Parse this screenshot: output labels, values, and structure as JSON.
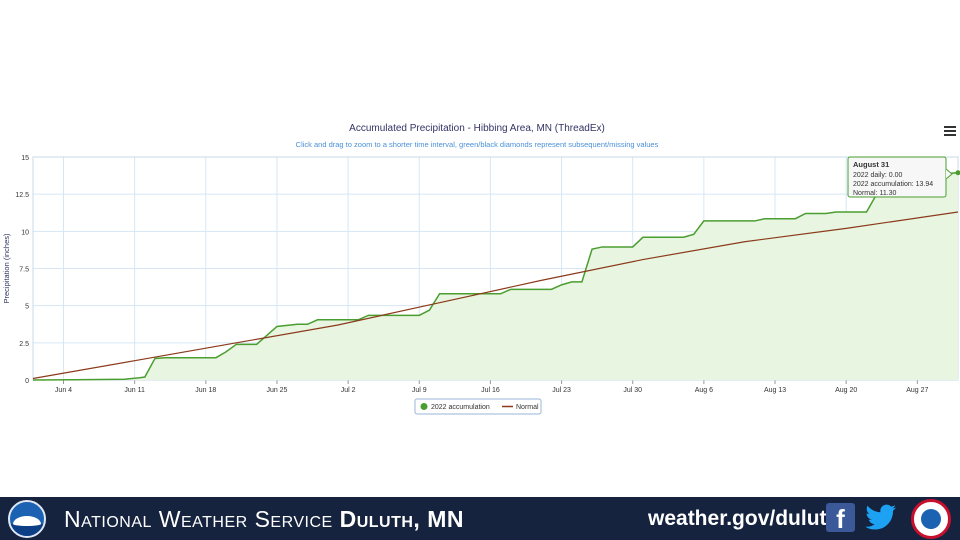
{
  "chart_data": {
    "type": "area",
    "title": "Accumulated Precipitation - Hibbing Area, MN (ThreadEx)",
    "subtitle": "Click and drag to zoom to a shorter time interval, green/black diamonds represent subsequent/missing values",
    "ylabel": "Precipitation (inches)",
    "xlabel": "",
    "ylim": [
      0,
      15
    ],
    "yticks": [
      0,
      2.5,
      5,
      7.5,
      10,
      12.5,
      15
    ],
    "ytick_labels": [
      "0",
      "2.5",
      "5",
      "7.5",
      "10",
      "12.5",
      "15"
    ],
    "x_range_day": [
      0,
      91
    ],
    "xticks": [
      {
        "day": 3,
        "label": "Jun 4"
      },
      {
        "day": 10,
        "label": "Jun 11"
      },
      {
        "day": 17,
        "label": "Jun 18"
      },
      {
        "day": 24,
        "label": "Jun 25"
      },
      {
        "day": 31,
        "label": "Jul 2"
      },
      {
        "day": 38,
        "label": "Jul 9"
      },
      {
        "day": 45,
        "label": "Jul 16"
      },
      {
        "day": 52,
        "label": "Jul 23"
      },
      {
        "day": 59,
        "label": "Jul 30"
      },
      {
        "day": 66,
        "label": "Aug 6"
      },
      {
        "day": 73,
        "label": "Aug 13"
      },
      {
        "day": 80,
        "label": "Aug 20"
      },
      {
        "day": 87,
        "label": "Aug 27"
      }
    ],
    "grid": true,
    "legend_position": "bottom-center",
    "series": [
      {
        "name": "2022 accumulation",
        "color": "#4a9e2f",
        "fill": "#e8f5e1",
        "points": [
          [
            0,
            0
          ],
          [
            4,
            0.02
          ],
          [
            9,
            0.05
          ],
          [
            10.5,
            0.15
          ],
          [
            11,
            0.2
          ],
          [
            12,
            1.45
          ],
          [
            13,
            1.5
          ],
          [
            18,
            1.5
          ],
          [
            19,
            1.9
          ],
          [
            20,
            2.4
          ],
          [
            22,
            2.4
          ],
          [
            23,
            3.0
          ],
          [
            24,
            3.6
          ],
          [
            26,
            3.75
          ],
          [
            27,
            3.75
          ],
          [
            28,
            4.05
          ],
          [
            32,
            4.05
          ],
          [
            33,
            4.35
          ],
          [
            38,
            4.35
          ],
          [
            39,
            4.7
          ],
          [
            40,
            5.8
          ],
          [
            46,
            5.8
          ],
          [
            47,
            6.1
          ],
          [
            51,
            6.1
          ],
          [
            52,
            6.4
          ],
          [
            53,
            6.6
          ],
          [
            54,
            6.6
          ],
          [
            55,
            8.8
          ],
          [
            56,
            8.95
          ],
          [
            59,
            8.95
          ],
          [
            60,
            9.6
          ],
          [
            64,
            9.6
          ],
          [
            65,
            9.8
          ],
          [
            66,
            10.7
          ],
          [
            71,
            10.7
          ],
          [
            72,
            10.85
          ],
          [
            75,
            10.85
          ],
          [
            76,
            11.2
          ],
          [
            78,
            11.2
          ],
          [
            79,
            11.3
          ],
          [
            82,
            11.3
          ],
          [
            83,
            12.5
          ],
          [
            84,
            13.0
          ],
          [
            89,
            13.85
          ],
          [
            91,
            13.94
          ]
        ]
      },
      {
        "name": "Normal",
        "color": "#8b3a1a",
        "points": [
          [
            0,
            0.1
          ],
          [
            10,
            1.3
          ],
          [
            20,
            2.5
          ],
          [
            30,
            3.7
          ],
          [
            40,
            5.2
          ],
          [
            50,
            6.7
          ],
          [
            60,
            8.1
          ],
          [
            70,
            9.3
          ],
          [
            80,
            10.2
          ],
          [
            91,
            11.3
          ]
        ]
      }
    ],
    "tooltip": {
      "date": "August 31",
      "daily": "2022 daily: 0.00",
      "accumulation": "2022 accumulation: 13.94",
      "normal": "Normal: 11.30",
      "border_color": "#4a9e2f"
    }
  },
  "footer": {
    "title_normal": "National Weather Service ",
    "title_bold": "Duluth, MN",
    "website": "weather.gov/duluth",
    "facebook_glyph": "f",
    "icons": [
      "noaa-logo-icon",
      "facebook-icon",
      "twitter-icon",
      "nws-logo-icon"
    ],
    "background": "#16233f"
  }
}
